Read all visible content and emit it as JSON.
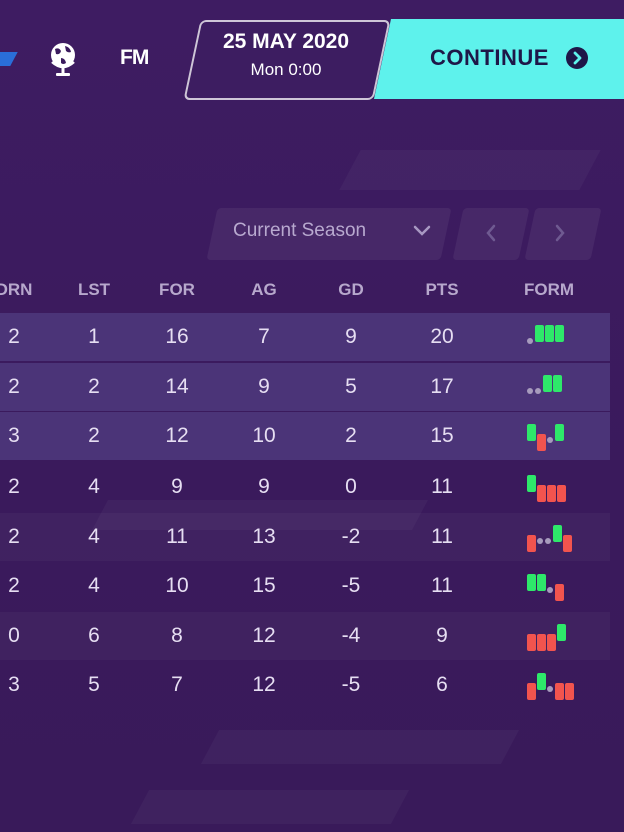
{
  "header": {
    "fm_label": "FM",
    "date": "25 MAY 2020",
    "time": "Mon 0:00",
    "continue_label": "CONTINUE"
  },
  "controls": {
    "season_label": "Current Season"
  },
  "table": {
    "columns": [
      "DRN",
      "LST",
      "FOR",
      "AG",
      "GD",
      "PTS",
      "FORM"
    ],
    "rows": [
      {
        "drn": "2",
        "lst": "1",
        "for": "16",
        "ag": "7",
        "gd": "9",
        "pts": "20",
        "form": [
          "D",
          "W",
          "W",
          "W"
        ]
      },
      {
        "drn": "2",
        "lst": "2",
        "for": "14",
        "ag": "9",
        "gd": "5",
        "pts": "17",
        "form": [
          "D",
          "D",
          "W",
          "W"
        ]
      },
      {
        "drn": "3",
        "lst": "2",
        "for": "12",
        "ag": "10",
        "gd": "2",
        "pts": "15",
        "form": [
          "W",
          "L",
          "D",
          "W"
        ]
      },
      {
        "drn": "2",
        "lst": "4",
        "for": "9",
        "ag": "9",
        "gd": "0",
        "pts": "11",
        "form": [
          "W",
          "L",
          "L",
          "L"
        ]
      },
      {
        "drn": "2",
        "lst": "4",
        "for": "11",
        "ag": "13",
        "gd": "-2",
        "pts": "11",
        "form": [
          "L",
          "D",
          "D",
          "W",
          "L"
        ]
      },
      {
        "drn": "2",
        "lst": "4",
        "for": "10",
        "ag": "15",
        "gd": "-5",
        "pts": "11",
        "form": [
          "W",
          "W",
          "D",
          "L"
        ]
      },
      {
        "drn": "0",
        "lst": "6",
        "for": "8",
        "ag": "12",
        "gd": "-4",
        "pts": "9",
        "form": [
          "L",
          "L",
          "L",
          "W"
        ]
      },
      {
        "drn": "3",
        "lst": "5",
        "for": "7",
        "ag": "12",
        "gd": "-5",
        "pts": "6",
        "form": [
          "L",
          "W",
          "D",
          "L",
          "L"
        ]
      }
    ]
  },
  "colors": {
    "background": "#3b1b5e",
    "highlight_row": "#4b3478",
    "accent_cyan": "#5ef2ec",
    "win": "#2ee86a",
    "loss": "#f2544e",
    "draw": "#a79bbd"
  },
  "icons": [
    "globe-icon",
    "chevron-down-icon",
    "chevron-left-icon",
    "chevron-right-icon",
    "continue-arrow-icon"
  ]
}
